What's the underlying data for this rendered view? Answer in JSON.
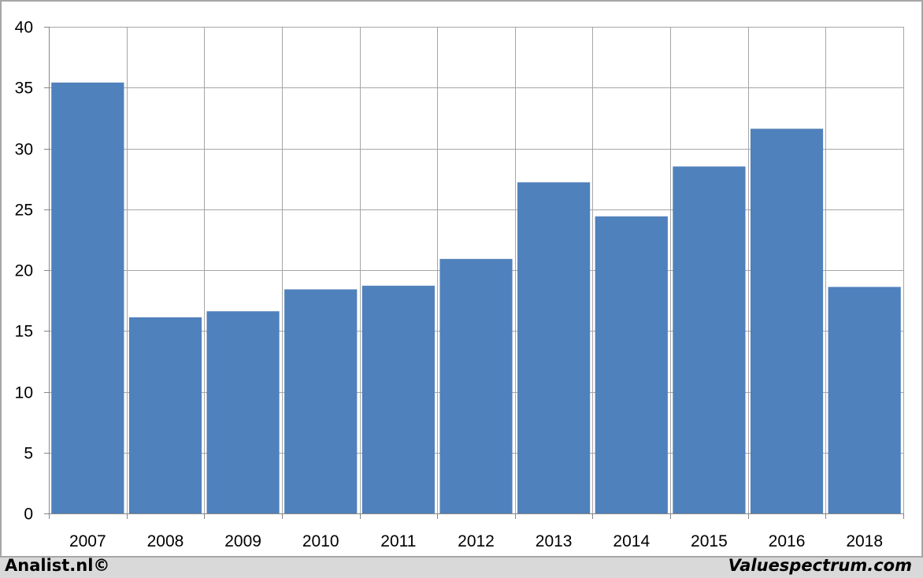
{
  "chart_data": {
    "type": "bar",
    "categories": [
      "2007",
      "2008",
      "2009",
      "2010",
      "2011",
      "2012",
      "2013",
      "2014",
      "2015",
      "2016",
      "2018"
    ],
    "values": [
      35.4,
      16.1,
      16.6,
      18.4,
      18.7,
      20.9,
      27.2,
      24.4,
      28.5,
      31.6,
      18.6
    ],
    "title": "",
    "xlabel": "",
    "ylabel": "",
    "ylim": [
      0,
      40
    ],
    "yticks": [
      0,
      5,
      10,
      15,
      20,
      25,
      30,
      35,
      40
    ],
    "grid": true,
    "legend": "none",
    "colors": {
      "bar": "#4f81bd",
      "grid": "#a6a6a6",
      "axis": "#868686"
    }
  },
  "footer": {
    "left": "Analist.nl©",
    "right": "Valuespectrum.com"
  }
}
